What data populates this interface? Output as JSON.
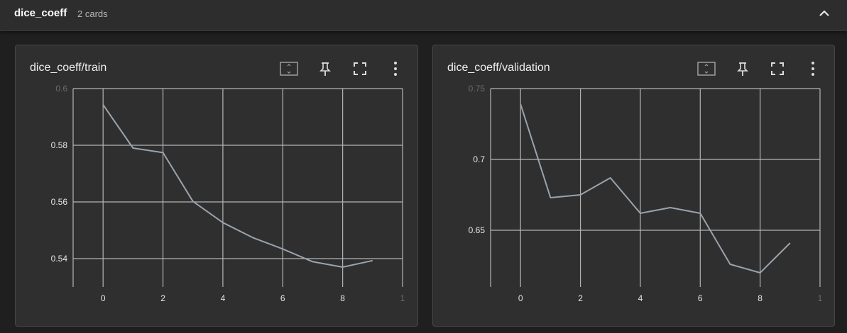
{
  "header": {
    "group_name": "dice_coeff",
    "card_count": "2 cards"
  },
  "icons": {
    "collapse": "chevron-up-icon",
    "fit": "fit-to-domain-icon",
    "pin": "pin-icon",
    "fullscreen": "fullscreen-icon",
    "menu": "more-vertical-icon"
  },
  "colors": {
    "line": "#9aa3ad",
    "grid": "#b5b5b5",
    "card_bg": "#2f2f2f"
  },
  "chart_data": [
    {
      "type": "line",
      "title": "dice_coeff/train",
      "xlabel": "",
      "ylabel": "",
      "x": [
        0,
        1,
        2,
        3,
        4,
        5,
        6,
        7,
        8,
        9
      ],
      "series": [
        {
          "values": [
            0.5943,
            0.579,
            0.5774,
            0.5602,
            0.5527,
            0.5474,
            0.5434,
            0.5389,
            0.537,
            0.5393
          ]
        }
      ],
      "xlim": [
        -1,
        10
      ],
      "ylim": [
        0.53,
        0.6
      ],
      "xticks": [
        "0",
        "2",
        "4",
        "6",
        "8",
        "1"
      ],
      "yticks": [
        "0.54",
        "0.56",
        "0.58",
        "0.6"
      ],
      "grid": true
    },
    {
      "type": "line",
      "title": "dice_coeff/validation",
      "xlabel": "",
      "ylabel": "",
      "x": [
        0,
        1,
        2,
        3,
        4,
        5,
        6,
        7,
        8,
        9
      ],
      "series": [
        {
          "values": [
            0.739,
            0.673,
            0.675,
            0.687,
            0.662,
            0.666,
            0.662,
            0.626,
            0.62,
            0.641
          ]
        }
      ],
      "xlim": [
        -1,
        10
      ],
      "ylim": [
        0.61,
        0.75
      ],
      "xticks": [
        "0",
        "2",
        "4",
        "6",
        "8",
        "1"
      ],
      "yticks": [
        "0.65",
        "0.7",
        "0.75"
      ],
      "grid": true
    }
  ]
}
